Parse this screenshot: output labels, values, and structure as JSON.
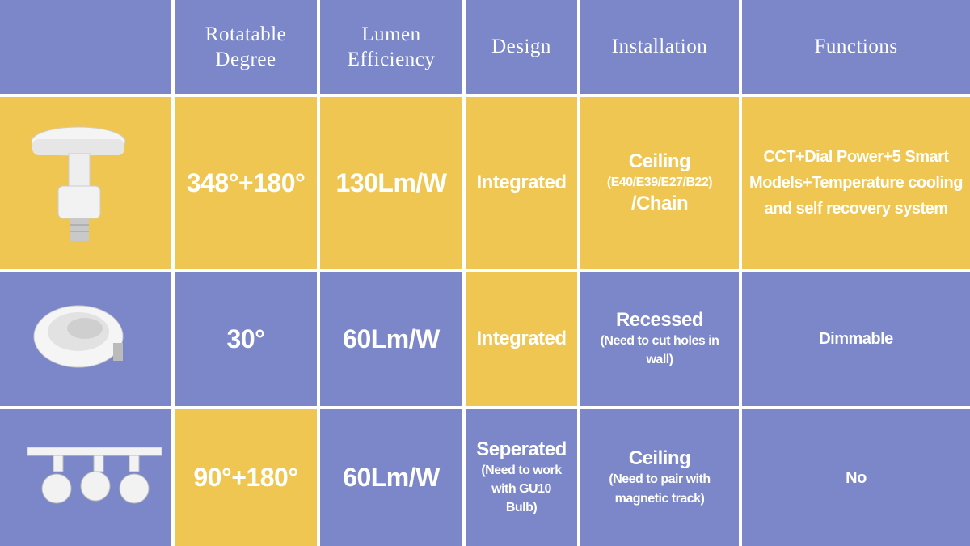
{
  "header": [
    "Rotatable Degree",
    "Lumen Efficiency",
    "Design",
    "Installation",
    "Functions"
  ],
  "rows": [
    {
      "cells": [
        {
          "title": "348°+180°"
        },
        {
          "title": "130Lm/W"
        },
        {
          "title": "Integrated"
        },
        {
          "title": "Ceiling",
          "note": "(E40/E39/E27/B22)",
          "suffix": "/Chain"
        },
        {
          "title": "CCT+Dial Power+5 Smart Models+Temperature cooling and self recovery system"
        }
      ]
    },
    {
      "cells": [
        {
          "title": "30°"
        },
        {
          "title": "60Lm/W"
        },
        {
          "title": "Integrated"
        },
        {
          "title": "Recessed",
          "note": "(Need to cut holes in wall)"
        },
        {
          "title": "Dimmable"
        }
      ]
    },
    {
      "cells": [
        {
          "title": "90°+180°"
        },
        {
          "title": "60Lm/W"
        },
        {
          "title": "Seperated",
          "note": "(Need to work with GU10 Bulb)"
        },
        {
          "title": "Ceiling",
          "note": "(Need to pair with magnetic track)"
        },
        {
          "title": "No"
        }
      ]
    }
  ]
}
